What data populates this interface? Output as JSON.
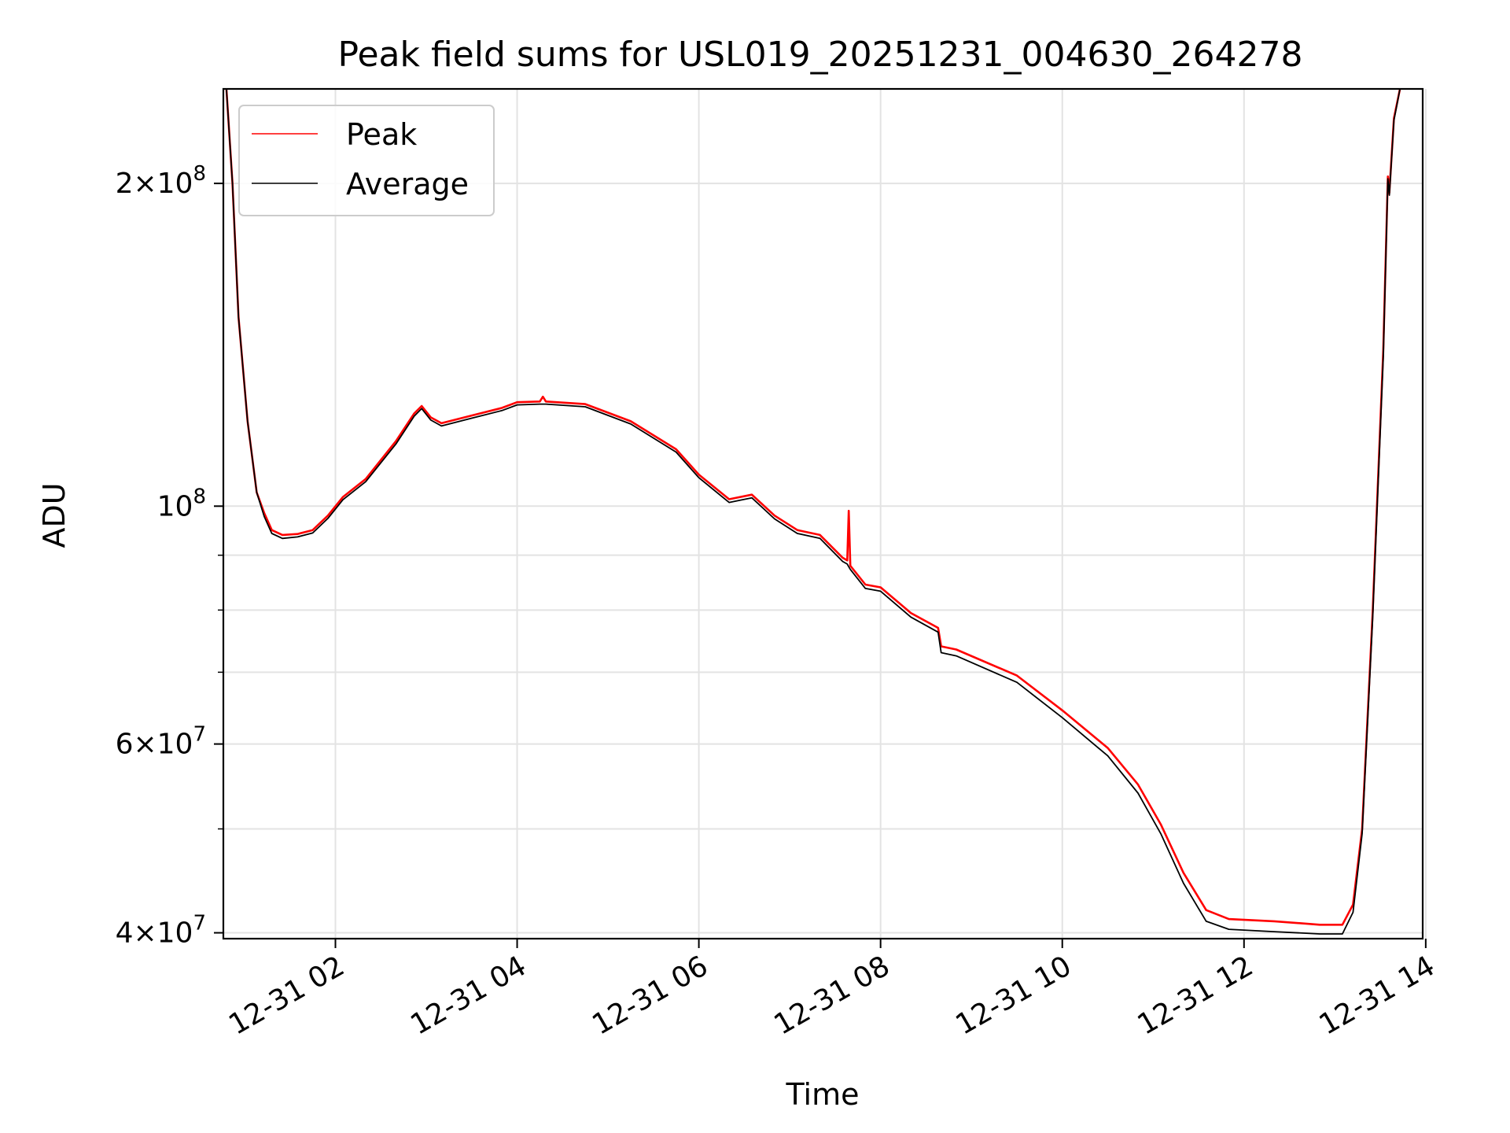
{
  "chart_data": {
    "type": "line",
    "title": "Peak field sums for USL019_20251231_004630_264278",
    "xlabel": "Time",
    "ylabel": "ADU",
    "yscale": "log",
    "ylim": [
      39500000,
      245000000
    ],
    "xlim": [
      "2025-12-31 00:46",
      "2025-12-31 13:58"
    ],
    "grid": true,
    "legend_position": "top-left",
    "x_ticks": [
      {
        "label": "12-31 02",
        "t": "2025-12-31 02:00"
      },
      {
        "label": "12-31 04",
        "t": "2025-12-31 04:00"
      },
      {
        "label": "12-31 06",
        "t": "2025-12-31 06:00"
      },
      {
        "label": "12-31 08",
        "t": "2025-12-31 08:00"
      },
      {
        "label": "12-31 10",
        "t": "2025-12-31 10:00"
      },
      {
        "label": "12-31 12",
        "t": "2025-12-31 12:00"
      },
      {
        "label": "12-31 14",
        "t": "2025-12-31 14:00"
      }
    ],
    "y_major_ticks": [
      {
        "value": 40000000,
        "mant": "4",
        "exp": "7"
      },
      {
        "value": 60000000,
        "mant": "6",
        "exp": "7"
      },
      {
        "value": 100000000,
        "mant": "",
        "exp": "8"
      },
      {
        "value": 200000000,
        "mant": "2",
        "exp": "8"
      }
    ],
    "y_minor_ticks": [
      50000000,
      70000000,
      80000000,
      90000000
    ],
    "series": [
      {
        "name": "Peak",
        "color": "#ff0000",
        "points": [
          [
            "2025-12-31 00:48",
            245000000
          ],
          [
            "2025-12-31 00:52",
            200000000
          ],
          [
            "2025-12-31 00:56",
            150000000
          ],
          [
            "2025-12-31 01:02",
            120000000
          ],
          [
            "2025-12-31 01:08",
            103000000
          ],
          [
            "2025-12-31 01:13",
            98500000
          ],
          [
            "2025-12-31 01:18",
            95000000
          ],
          [
            "2025-12-31 01:25",
            94000000
          ],
          [
            "2025-12-31 01:35",
            94200000
          ],
          [
            "2025-12-31 01:45",
            95000000
          ],
          [
            "2025-12-31 01:55",
            98000000
          ],
          [
            "2025-12-31 02:05",
            102000000
          ],
          [
            "2025-12-31 02:20",
            106000000
          ],
          [
            "2025-12-31 02:40",
            115000000
          ],
          [
            "2025-12-31 02:52",
            122000000
          ],
          [
            "2025-12-31 02:57",
            124000000
          ],
          [
            "2025-12-31 03:03",
            121000000
          ],
          [
            "2025-12-31 03:10",
            119500000
          ],
          [
            "2025-12-31 03:30",
            121500000
          ],
          [
            "2025-12-31 03:50",
            123500000
          ],
          [
            "2025-12-31 04:00",
            125000000
          ],
          [
            "2025-12-31 04:15",
            125200000
          ],
          [
            "2025-12-31 04:17",
            126500000
          ],
          [
            "2025-12-31 04:19",
            125200000
          ],
          [
            "2025-12-31 04:45",
            124500000
          ],
          [
            "2025-12-31 05:15",
            120000000
          ],
          [
            "2025-12-31 05:45",
            113000000
          ],
          [
            "2025-12-31 06:00",
            107000000
          ],
          [
            "2025-12-31 06:20",
            101500000
          ],
          [
            "2025-12-31 06:35",
            102500000
          ],
          [
            "2025-12-31 06:50",
            98000000
          ],
          [
            "2025-12-31 07:05",
            95000000
          ],
          [
            "2025-12-31 07:20",
            94000000
          ],
          [
            "2025-12-31 07:35",
            89500000
          ],
          [
            "2025-12-31 07:38",
            89000000
          ],
          [
            "2025-12-31 07:39",
            99000000
          ],
          [
            "2025-12-31 07:40",
            88000000
          ],
          [
            "2025-12-31 07:50",
            84500000
          ],
          [
            "2025-12-31 08:00",
            84000000
          ],
          [
            "2025-12-31 08:20",
            79500000
          ],
          [
            "2025-12-31 08:38",
            77000000
          ],
          [
            "2025-12-31 08:40",
            74000000
          ],
          [
            "2025-12-31 08:50",
            73500000
          ],
          [
            "2025-12-31 09:30",
            69500000
          ],
          [
            "2025-12-31 10:00",
            64500000
          ],
          [
            "2025-12-31 10:30",
            59500000
          ],
          [
            "2025-12-31 10:50",
            55000000
          ],
          [
            "2025-12-31 11:05",
            50500000
          ],
          [
            "2025-12-31 11:20",
            45500000
          ],
          [
            "2025-12-31 11:35",
            42000000
          ],
          [
            "2025-12-31 11:50",
            41200000
          ],
          [
            "2025-12-31 12:20",
            41000000
          ],
          [
            "2025-12-31 12:50",
            40700000
          ],
          [
            "2025-12-31 13:05",
            40700000
          ],
          [
            "2025-12-31 13:12",
            42500000
          ],
          [
            "2025-12-31 13:18",
            50000000
          ],
          [
            "2025-12-31 13:25",
            80000000
          ],
          [
            "2025-12-31 13:32",
            140000000
          ],
          [
            "2025-12-31 13:35",
            203000000
          ],
          [
            "2025-12-31 13:36",
            196000000
          ],
          [
            "2025-12-31 13:39",
            230000000
          ],
          [
            "2025-12-31 13:43",
            245000000
          ]
        ]
      },
      {
        "name": "Average",
        "color": "#000000",
        "points": [
          [
            "2025-12-31 00:48",
            245000000
          ],
          [
            "2025-12-31 00:52",
            200000000
          ],
          [
            "2025-12-31 00:56",
            150000000
          ],
          [
            "2025-12-31 01:02",
            120000000
          ],
          [
            "2025-12-31 01:08",
            103000000
          ],
          [
            "2025-12-31 01:13",
            97800000
          ],
          [
            "2025-12-31 01:18",
            94300000
          ],
          [
            "2025-12-31 01:25",
            93300000
          ],
          [
            "2025-12-31 01:35",
            93600000
          ],
          [
            "2025-12-31 01:45",
            94400000
          ],
          [
            "2025-12-31 01:55",
            97400000
          ],
          [
            "2025-12-31 02:05",
            101400000
          ],
          [
            "2025-12-31 02:20",
            105400000
          ],
          [
            "2025-12-31 02:40",
            114300000
          ],
          [
            "2025-12-31 02:52",
            121300000
          ],
          [
            "2025-12-31 02:57",
            123300000
          ],
          [
            "2025-12-31 03:03",
            120300000
          ],
          [
            "2025-12-31 03:10",
            118800000
          ],
          [
            "2025-12-31 03:30",
            120800000
          ],
          [
            "2025-12-31 03:50",
            122800000
          ],
          [
            "2025-12-31 04:00",
            124300000
          ],
          [
            "2025-12-31 04:15",
            124500000
          ],
          [
            "2025-12-31 04:17",
            124500000
          ],
          [
            "2025-12-31 04:19",
            124500000
          ],
          [
            "2025-12-31 04:45",
            123800000
          ],
          [
            "2025-12-31 05:15",
            119300000
          ],
          [
            "2025-12-31 05:45",
            112300000
          ],
          [
            "2025-12-31 06:00",
            106300000
          ],
          [
            "2025-12-31 06:20",
            100800000
          ],
          [
            "2025-12-31 06:35",
            101800000
          ],
          [
            "2025-12-31 06:50",
            97300000
          ],
          [
            "2025-12-31 07:05",
            94300000
          ],
          [
            "2025-12-31 07:20",
            93300000
          ],
          [
            "2025-12-31 07:35",
            88800000
          ],
          [
            "2025-12-31 07:38",
            88300000
          ],
          [
            "2025-12-31 07:39",
            87800000
          ],
          [
            "2025-12-31 07:40",
            87300000
          ],
          [
            "2025-12-31 07:50",
            83800000
          ],
          [
            "2025-12-31 08:00",
            83300000
          ],
          [
            "2025-12-31 08:20",
            78800000
          ],
          [
            "2025-12-31 08:38",
            76300000
          ],
          [
            "2025-12-31 08:40",
            73000000
          ],
          [
            "2025-12-31 08:50",
            72500000
          ],
          [
            "2025-12-31 09:30",
            68500000
          ],
          [
            "2025-12-31 10:00",
            63500000
          ],
          [
            "2025-12-31 10:30",
            58500000
          ],
          [
            "2025-12-31 10:50",
            54000000
          ],
          [
            "2025-12-31 11:05",
            49500000
          ],
          [
            "2025-12-31 11:20",
            44500000
          ],
          [
            "2025-12-31 11:35",
            41000000
          ],
          [
            "2025-12-31 11:50",
            40300000
          ],
          [
            "2025-12-31 12:20",
            40100000
          ],
          [
            "2025-12-31 12:50",
            39900000
          ],
          [
            "2025-12-31 13:05",
            39900000
          ],
          [
            "2025-12-31 13:12",
            41800000
          ],
          [
            "2025-12-31 13:18",
            49500000
          ],
          [
            "2025-12-31 13:25",
            79000000
          ],
          [
            "2025-12-31 13:32",
            138000000
          ],
          [
            "2025-12-31 13:35",
            202000000
          ],
          [
            "2025-12-31 13:36",
            195000000
          ],
          [
            "2025-12-31 13:39",
            229000000
          ],
          [
            "2025-12-31 13:43",
            245000000
          ]
        ]
      }
    ]
  }
}
